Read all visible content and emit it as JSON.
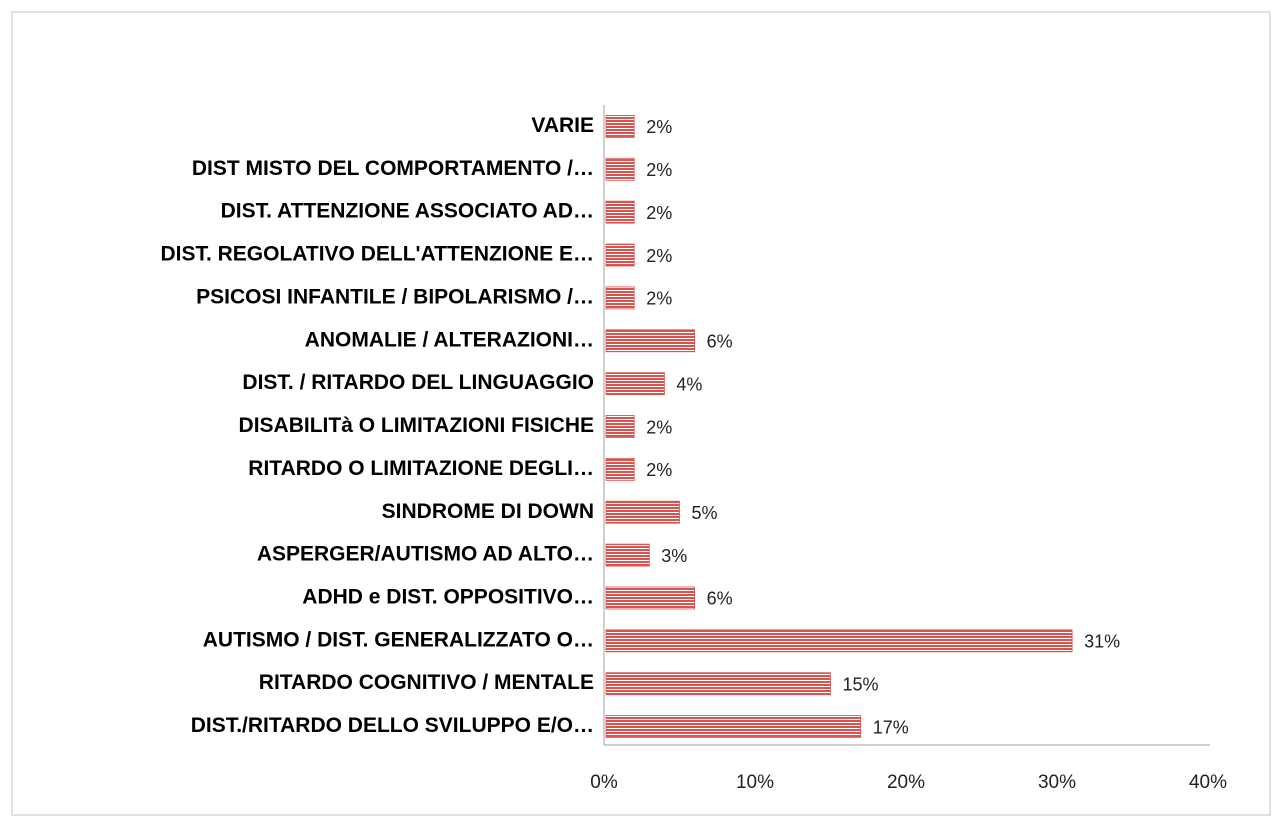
{
  "chart_data": {
    "type": "bar",
    "orientation": "horizontal",
    "categories": [
      "DIST./RITARDO DELLO SVILUPPO E/O…",
      "RITARDO COGNITIVO / MENTALE",
      "AUTISMO / DIST. GENERALIZZATO O…",
      "ADHD e DIST. OPPOSITIVO…",
      "ASPERGER/AUTISMO AD ALTO…",
      "SINDROME DI DOWN",
      "RITARDO O LIMITAZIONE DEGLI…",
      "DISABILITà O LIMITAZIONI FISICHE",
      "DIST. / RITARDO DEL LINGUAGGIO",
      "ANOMALIE / ALTERAZIONI…",
      "PSICOSI INFANTILE / BIPOLARISMO /…",
      "DIST. REGOLATIVO DELL'ATTENZIONE E…",
      "DIST. ATTENZIONE ASSOCIATO AD…",
      "DIST MISTO DEL COMPORTAMENTO /…",
      "VARIE"
    ],
    "values": [
      17,
      15,
      31,
      6,
      3,
      5,
      2,
      2,
      4,
      6,
      2,
      2,
      2,
      2,
      2
    ],
    "value_labels": [
      "17%",
      "15%",
      "31%",
      "6%",
      "3%",
      "5%",
      "2%",
      "2%",
      "4%",
      "6%",
      "2%",
      "2%",
      "2%",
      "2%",
      "2%"
    ],
    "color": "#d9534f",
    "xlim": [
      0,
      40
    ],
    "xticks": [
      {
        "value": 0,
        "label": "0%"
      },
      {
        "value": 10,
        "label": "10%"
      },
      {
        "value": 20,
        "label": "20%"
      },
      {
        "value": 30,
        "label": "30%"
      },
      {
        "value": 40,
        "label": "40%"
      }
    ]
  }
}
